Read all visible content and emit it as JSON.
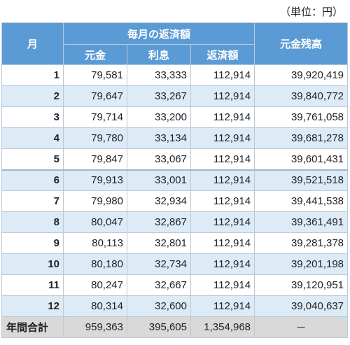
{
  "unit_note": "（単位：円）",
  "headers": {
    "month": "月",
    "monthly_payment_group": "毎月の返済額",
    "principal": "元金",
    "interest": "利息",
    "payment": "返済額",
    "balance": "元金残高"
  },
  "rows": [
    {
      "month": "1",
      "principal": "79,581",
      "interest": "33,333",
      "payment": "112,914",
      "balance": "39,920,419"
    },
    {
      "month": "2",
      "principal": "79,647",
      "interest": "33,267",
      "payment": "112,914",
      "balance": "39,840,772"
    },
    {
      "month": "3",
      "principal": "79,714",
      "interest": "33,200",
      "payment": "112,914",
      "balance": "39,761,058"
    },
    {
      "month": "4",
      "principal": "79,780",
      "interest": "33,134",
      "payment": "112,914",
      "balance": "39,681,278"
    },
    {
      "month": "5",
      "principal": "79,847",
      "interest": "33,067",
      "payment": "112,914",
      "balance": "39,601,431"
    },
    {
      "month": "6",
      "principal": "79,913",
      "interest": "33,001",
      "payment": "112,914",
      "balance": "39,521,518"
    },
    {
      "month": "7",
      "principal": "79,980",
      "interest": "32,934",
      "payment": "112,914",
      "balance": "39,441,538"
    },
    {
      "month": "8",
      "principal": "80,047",
      "interest": "32,867",
      "payment": "112,914",
      "balance": "39,361,491"
    },
    {
      "month": "9",
      "principal": "80,113",
      "interest": "32,801",
      "payment": "112,914",
      "balance": "39,281,378"
    },
    {
      "month": "10",
      "principal": "80,180",
      "interest": "32,734",
      "payment": "112,914",
      "balance": "39,201,198"
    },
    {
      "month": "11",
      "principal": "80,247",
      "interest": "32,667",
      "payment": "112,914",
      "balance": "39,120,951"
    },
    {
      "month": "12",
      "principal": "80,314",
      "interest": "32,600",
      "payment": "112,914",
      "balance": "39,040,637"
    }
  ],
  "total": {
    "label": "年間合計",
    "principal": "959,363",
    "interest": "395,605",
    "payment": "1,354,968",
    "balance": "－"
  },
  "colors": {
    "header_bg": "#5b9bd5",
    "row_alt_bg": "#ddebf7",
    "total_bg": "#d9d9d9"
  }
}
